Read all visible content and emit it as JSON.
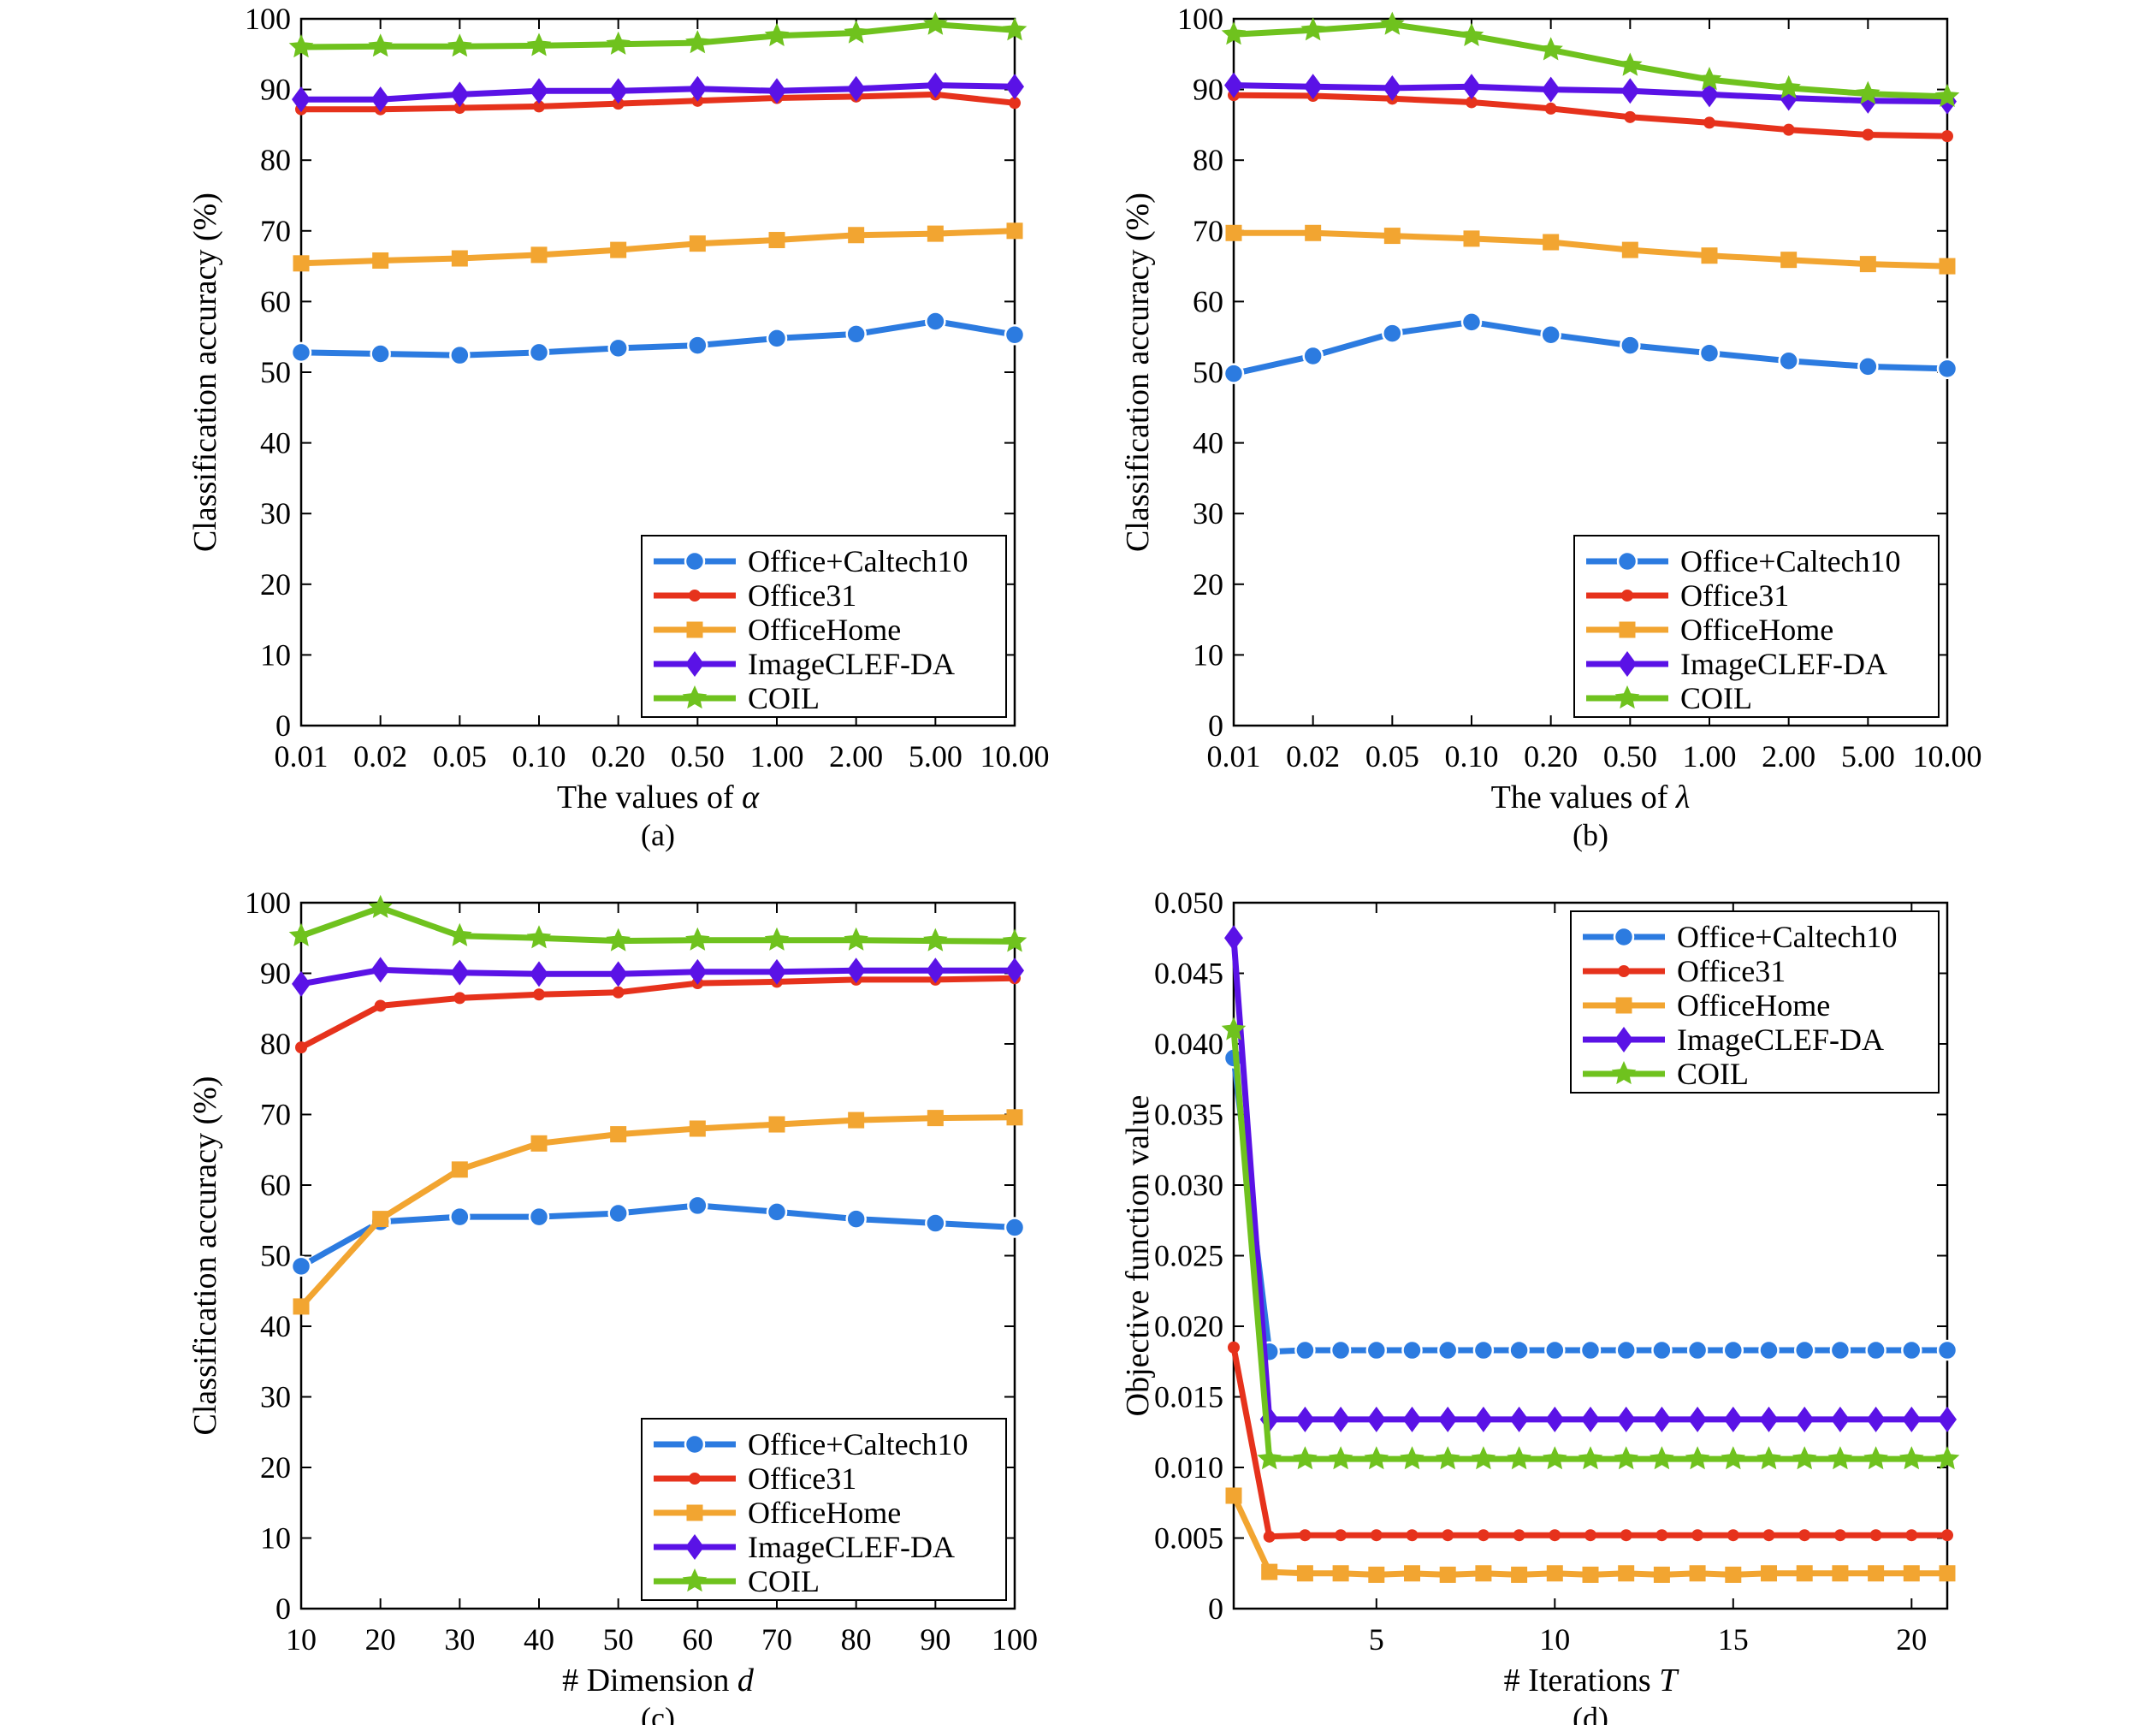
{
  "series_styles": [
    {
      "name": "Office+Caltech10",
      "color": "#2C7BE0",
      "marker": "circle"
    },
    {
      "name": "Office31",
      "color": "#E6321C",
      "marker": "dot"
    },
    {
      "name": "OfficeHome",
      "color": "#F2A531",
      "marker": "square"
    },
    {
      "name": "ImageCLEF-DA",
      "color": "#5A12E6",
      "marker": "diamond"
    },
    {
      "name": "COIL",
      "color": "#6FC21E",
      "marker": "star"
    }
  ],
  "chart_data": [
    {
      "type": "line",
      "caption": "(a)",
      "xlabel_text": "The values of ",
      "xlabel_symbol": "α",
      "ylabel": "Classification accuracy (%)",
      "categories": [
        "0.01",
        "0.02",
        "0.05",
        "0.10",
        "0.20",
        "0.50",
        "1.00",
        "2.00",
        "5.00",
        "10.00"
      ],
      "ylim": [
        0,
        100
      ],
      "yticks": [
        "0",
        "10",
        "20",
        "30",
        "40",
        "50",
        "60",
        "70",
        "80",
        "90",
        "100"
      ],
      "legend_position": "bottom-right",
      "series": [
        {
          "name": "Office+Caltech10",
          "values": [
            52.8,
            52.6,
            52.4,
            52.8,
            53.4,
            53.8,
            54.8,
            55.4,
            57.2,
            55.3
          ]
        },
        {
          "name": "Office31",
          "values": [
            87.2,
            87.2,
            87.4,
            87.6,
            88.0,
            88.4,
            88.8,
            89.0,
            89.3,
            88.1
          ]
        },
        {
          "name": "OfficeHome",
          "values": [
            65.4,
            65.8,
            66.1,
            66.6,
            67.3,
            68.2,
            68.7,
            69.4,
            69.6,
            70.0
          ]
        },
        {
          "name": "ImageCLEF-DA",
          "values": [
            88.6,
            88.6,
            89.3,
            89.8,
            89.8,
            90.1,
            89.8,
            90.1,
            90.6,
            90.4
          ]
        },
        {
          "name": "COIL",
          "values": [
            96.0,
            96.1,
            96.1,
            96.2,
            96.4,
            96.6,
            97.6,
            98.0,
            99.2,
            98.4
          ]
        }
      ]
    },
    {
      "type": "line",
      "caption": "(b)",
      "xlabel_text": "The values of ",
      "xlabel_symbol": "λ",
      "ylabel": "Classification accuracy (%)",
      "categories": [
        "0.01",
        "0.02",
        "0.05",
        "0.10",
        "0.20",
        "0.50",
        "1.00",
        "2.00",
        "5.00",
        "10.00"
      ],
      "ylim": [
        0,
        100
      ],
      "yticks": [
        "0",
        "10",
        "20",
        "30",
        "40",
        "50",
        "60",
        "70",
        "80",
        "90",
        "100"
      ],
      "legend_position": "bottom-right",
      "series": [
        {
          "name": "Office+Caltech10",
          "values": [
            49.8,
            52.3,
            55.5,
            57.1,
            55.3,
            53.8,
            52.7,
            51.6,
            50.8,
            50.5
          ]
        },
        {
          "name": "Office31",
          "values": [
            89.2,
            89.1,
            88.7,
            88.2,
            87.3,
            86.1,
            85.3,
            84.3,
            83.6,
            83.4
          ]
        },
        {
          "name": "OfficeHome",
          "values": [
            69.7,
            69.7,
            69.3,
            68.9,
            68.4,
            67.3,
            66.5,
            65.9,
            65.3,
            65.0
          ]
        },
        {
          "name": "ImageCLEF-DA",
          "values": [
            90.6,
            90.4,
            90.2,
            90.4,
            90.0,
            89.8,
            89.3,
            88.8,
            88.4,
            88.3
          ]
        },
        {
          "name": "COIL",
          "values": [
            97.8,
            98.4,
            99.2,
            97.6,
            95.6,
            93.4,
            91.4,
            90.2,
            89.4,
            89.0
          ]
        }
      ]
    },
    {
      "type": "line",
      "caption": "(c)",
      "xlabel_text": "# Dimension ",
      "xlabel_symbol": "d",
      "ylabel": "Classification accuracy (%)",
      "categories": [
        "10",
        "20",
        "30",
        "40",
        "50",
        "60",
        "70",
        "80",
        "90",
        "100"
      ],
      "ylim": [
        0,
        100
      ],
      "yticks": [
        "0",
        "10",
        "20",
        "30",
        "40",
        "50",
        "60",
        "70",
        "80",
        "90",
        "100"
      ],
      "legend_position": "bottom-right",
      "series": [
        {
          "name": "Office+Caltech10",
          "values": [
            48.5,
            54.8,
            55.5,
            55.5,
            56.0,
            57.1,
            56.2,
            55.2,
            54.6,
            54.0
          ]
        },
        {
          "name": "Office31",
          "values": [
            79.5,
            85.4,
            86.5,
            87.0,
            87.3,
            88.6,
            88.8,
            89.1,
            89.1,
            89.3
          ]
        },
        {
          "name": "OfficeHome",
          "values": [
            42.8,
            55.2,
            62.2,
            65.9,
            67.2,
            68.0,
            68.6,
            69.2,
            69.5,
            69.6
          ]
        },
        {
          "name": "ImageCLEF-DA",
          "values": [
            88.5,
            90.5,
            90.1,
            89.9,
            89.9,
            90.2,
            90.2,
            90.4,
            90.4,
            90.4
          ]
        },
        {
          "name": "COIL",
          "values": [
            95.3,
            99.3,
            95.3,
            95.0,
            94.6,
            94.7,
            94.7,
            94.7,
            94.6,
            94.5
          ]
        }
      ]
    },
    {
      "type": "line",
      "caption": "(d)",
      "xlabel_text": "# Iterations ",
      "xlabel_symbol": "T",
      "ylabel": "Objective function value",
      "x": [
        1,
        2,
        3,
        4,
        5,
        6,
        7,
        8,
        9,
        10,
        11,
        12,
        13,
        14,
        15,
        16,
        17,
        18,
        19,
        20,
        21
      ],
      "xlim": [
        1,
        21
      ],
      "xticks": [
        5,
        10,
        15,
        20
      ],
      "ylim": [
        0,
        0.05
      ],
      "yticks": [
        "0",
        "0.005",
        "0.010",
        "0.015",
        "0.020",
        "0.025",
        "0.030",
        "0.035",
        "0.040",
        "0.045",
        "0.050"
      ],
      "legend_position": "top-right",
      "series": [
        {
          "name": "Office+Caltech10",
          "values": [
            0.039,
            0.0182,
            0.0183,
            0.0183,
            0.0183,
            0.0183,
            0.0183,
            0.0183,
            0.0183,
            0.0183,
            0.0183,
            0.0183,
            0.0183,
            0.0183,
            0.0183,
            0.0183,
            0.0183,
            0.0183,
            0.0183,
            0.0183,
            0.0183
          ]
        },
        {
          "name": "Office31",
          "values": [
            0.0185,
            0.0051,
            0.0052,
            0.0052,
            0.0052,
            0.0052,
            0.0052,
            0.0052,
            0.0052,
            0.0052,
            0.0052,
            0.0052,
            0.0052,
            0.0052,
            0.0052,
            0.0052,
            0.0052,
            0.0052,
            0.0052,
            0.0052,
            0.0052
          ]
        },
        {
          "name": "OfficeHome",
          "values": [
            0.008,
            0.0026,
            0.0025,
            0.0025,
            0.0024,
            0.0025,
            0.0024,
            0.0025,
            0.0024,
            0.0025,
            0.0024,
            0.0025,
            0.0024,
            0.0025,
            0.0024,
            0.0025,
            0.0025,
            0.0025,
            0.0025,
            0.0025,
            0.0025
          ]
        },
        {
          "name": "ImageCLEF-DA",
          "values": [
            0.0475,
            0.0134,
            0.0134,
            0.0134,
            0.0134,
            0.0134,
            0.0134,
            0.0134,
            0.0134,
            0.0134,
            0.0134,
            0.0134,
            0.0134,
            0.0134,
            0.0134,
            0.0134,
            0.0134,
            0.0134,
            0.0134,
            0.0134,
            0.0134
          ]
        },
        {
          "name": "COIL",
          "values": [
            0.041,
            0.0106,
            0.0106,
            0.0106,
            0.0106,
            0.0106,
            0.0106,
            0.0106,
            0.0106,
            0.0106,
            0.0106,
            0.0106,
            0.0106,
            0.0106,
            0.0106,
            0.0106,
            0.0106,
            0.0106,
            0.0106,
            0.0106,
            0.0106
          ]
        }
      ]
    }
  ]
}
